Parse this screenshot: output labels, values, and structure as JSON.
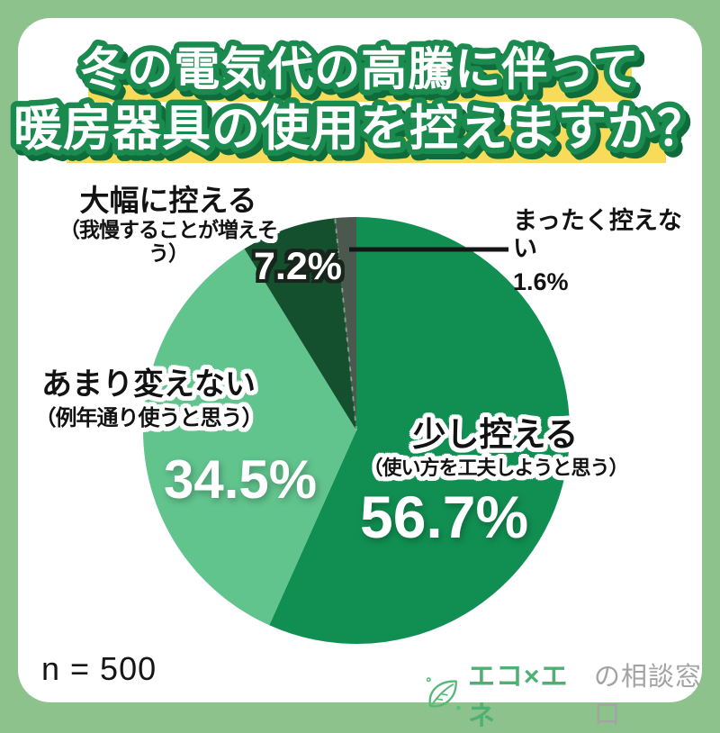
{
  "frame": {
    "background_color": "#8dc28d",
    "card_color": "#ffffff"
  },
  "title": {
    "line1": "冬の電気代の高騰に伴って",
    "line2": "暖房器具の使用を控えますか？",
    "highlight_color": "#f8db58",
    "text_color": "#ffffff",
    "outline_color": "#1a8a4f",
    "shadow_color": "#0f6b3a"
  },
  "chart_data": {
    "type": "pie",
    "title": "冬の電気代の高騰に伴って暖房器具の使用を控えますか？",
    "n": 500,
    "start_angle_deg": 0,
    "direction": "clockwise",
    "legend_position": "around-slices",
    "segments": [
      {
        "label": "少し控える",
        "sublabel": "（使い方を工夫しようと思う）",
        "value": 56.7,
        "display": "56.7%",
        "color": "#118f52"
      },
      {
        "label": "あまり変えない",
        "sublabel": "（例年通り使うと思う）",
        "value": 34.5,
        "display": "34.5%",
        "color": "#61c48d"
      },
      {
        "label": "大幅に控える",
        "sublabel": "（我慢することが増えそう）",
        "value": 7.2,
        "display": "7.2%",
        "color": "#15502e"
      },
      {
        "label": "まったく控えない",
        "sublabel": "",
        "value": 1.6,
        "display": "1.6%",
        "color": "#4b584e"
      }
    ]
  },
  "footer": {
    "sample_size": "n = 500",
    "logo": {
      "icon": "leaf-icon",
      "brand": "エコ×エネ",
      "suffix": "の相談窓口",
      "brand_color": "#4eb173",
      "suffix_color": "#a3a3a3"
    }
  }
}
